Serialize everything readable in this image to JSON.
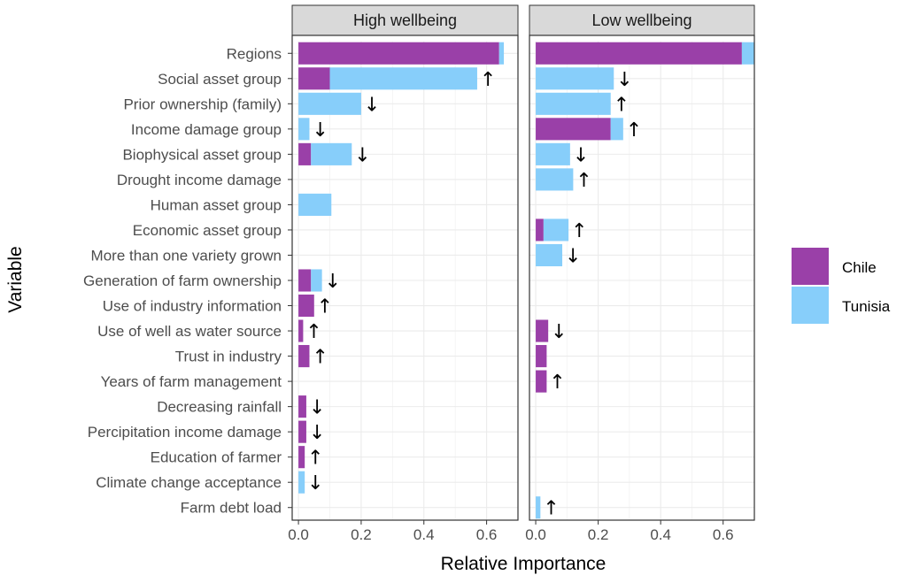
{
  "chart_data": {
    "type": "bar",
    "xlabel": "Relative Importance",
    "ylabel": "Variable",
    "xlim": [
      -0.02,
      0.7
    ],
    "xticks": [
      0.0,
      0.2,
      0.4,
      0.6
    ],
    "xtick_labels": [
      "0.0",
      "0.2",
      "0.4",
      "0.6"
    ],
    "grid": true,
    "legend_position": "right",
    "colors": {
      "Chile": "#9a40a8",
      "Tunisia": "#87cefa"
    },
    "categories": [
      "Regions",
      "Social asset group",
      "Prior ownership (family)",
      "Income damage group",
      "Biophysical asset group",
      "Drought income damage",
      "Human asset group",
      "Economic asset group",
      "More than one variety grown",
      "Generation of farm ownership",
      "Use of industry information",
      "Use of well as water source",
      "Trust in industry",
      "Years of farm management",
      "Decreasing rainfall",
      "Percipitation income damage",
      "Education of farmer",
      "Climate change acceptance",
      "Farm debt load"
    ],
    "series_names": [
      "Chile",
      "Tunisia"
    ],
    "panels": [
      {
        "title": "High wellbeing",
        "chile": [
          0.64,
          0.1,
          0,
          0,
          0.04,
          0,
          0,
          0,
          0,
          0.04,
          0.05,
          0.015,
          0.035,
          0,
          0.025,
          0.025,
          0.02,
          0,
          0
        ],
        "tunisia": [
          0.015,
          0.47,
          0.2,
          0.035,
          0.13,
          0,
          0.105,
          0,
          0,
          0.035,
          0,
          0,
          0,
          0,
          0,
          0,
          0,
          0.02,
          0
        ],
        "arrows": [
          "",
          "↑",
          "↓",
          "↓",
          "↓",
          "",
          "",
          "",
          "",
          "↓",
          "↑",
          "↑",
          "↑",
          "",
          "↓",
          "↓",
          "↑",
          "↓",
          ""
        ]
      },
      {
        "title": "Low wellbeing",
        "chile": [
          0.66,
          0,
          0,
          0.24,
          0,
          0,
          0,
          0.025,
          0,
          0,
          0,
          0.04,
          0.035,
          0.035,
          0,
          0,
          0,
          0,
          0
        ],
        "tunisia": [
          0.04,
          0.25,
          0.24,
          0.04,
          0.11,
          0.12,
          0,
          0.08,
          0.085,
          0,
          0,
          0,
          0,
          0,
          0,
          0,
          0,
          0,
          0.015
        ],
        "arrows": [
          "",
          "↓",
          "↑",
          "↑",
          "↓",
          "↑",
          "",
          "↑",
          "↓",
          "",
          "",
          "↓",
          "",
          "↑",
          "",
          "",
          "",
          "",
          "↑"
        ]
      }
    ]
  }
}
